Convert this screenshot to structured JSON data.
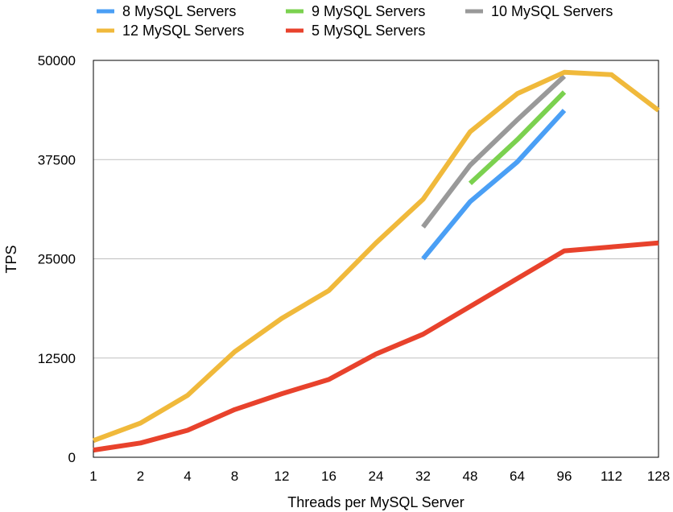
{
  "chart_data": {
    "type": "line",
    "title": "",
    "xlabel": "Threads per MySQL Server",
    "ylabel": "TPS",
    "categories": [
      "1",
      "2",
      "4",
      "8",
      "12",
      "16",
      "24",
      "32",
      "48",
      "64",
      "96",
      "112",
      "128"
    ],
    "yticks": [
      "0",
      "12500",
      "25000",
      "37500",
      "50000"
    ],
    "ylim": [
      0,
      50000
    ],
    "grid": "horizontal",
    "legend_position": "top",
    "series": [
      {
        "name": "8 MySQL Servers",
        "color": "#4a9ff5",
        "values": [
          null,
          null,
          null,
          null,
          null,
          null,
          null,
          25000,
          32200,
          37200,
          43700,
          null,
          null
        ]
      },
      {
        "name": "9 MySQL Servers",
        "color": "#7bd14f",
        "values": [
          null,
          null,
          null,
          null,
          null,
          null,
          null,
          null,
          34500,
          40000,
          46000,
          null,
          null
        ]
      },
      {
        "name": "10 MySQL Servers",
        "color": "#999999",
        "values": [
          null,
          null,
          null,
          null,
          null,
          null,
          null,
          29000,
          36800,
          42500,
          48000,
          null,
          null
        ]
      },
      {
        "name": "12 MySQL Servers",
        "color": "#f0b93b",
        "values": [
          2100,
          4300,
          7800,
          13300,
          17500,
          21000,
          27000,
          32500,
          41000,
          45800,
          48500,
          48200,
          43700
        ]
      },
      {
        "name": "5 MySQL Servers",
        "color": "#e8422c",
        "values": [
          900,
          1800,
          3400,
          6000,
          8000,
          9800,
          13000,
          15500,
          19000,
          22500,
          26000,
          26500,
          27000
        ]
      }
    ]
  }
}
